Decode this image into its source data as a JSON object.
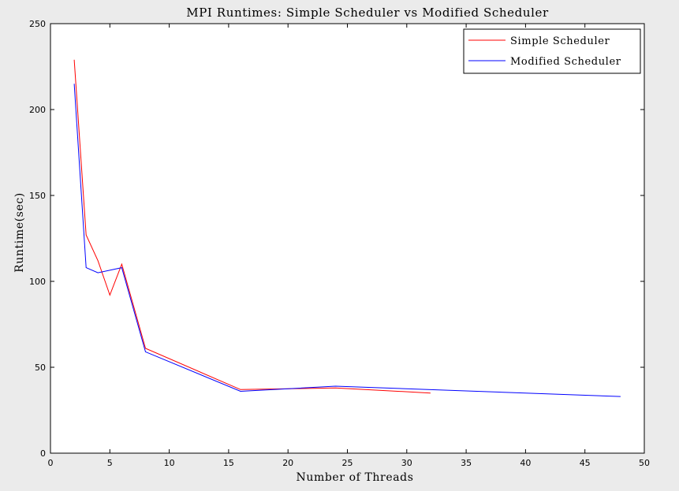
{
  "chart_data": {
    "type": "line",
    "title": "MPI Runtimes: Simple Scheduler vs Modified Scheduler",
    "xlabel": "Number of Threads",
    "ylabel": "Runtime(sec)",
    "xlim": [
      0,
      50
    ],
    "ylim": [
      0,
      250
    ],
    "xticks": [
      0,
      5,
      10,
      15,
      20,
      25,
      30,
      35,
      40,
      45,
      50
    ],
    "yticks": [
      0,
      50,
      100,
      150,
      200,
      250
    ],
    "grid": false,
    "legend_position": "top-right",
    "series": [
      {
        "name": "Simple Scheduler",
        "color": "#ff0000",
        "x": [
          2,
          3,
          4,
          5,
          6,
          8,
          16,
          24,
          32
        ],
        "y": [
          229,
          127,
          112,
          92,
          110,
          61,
          37,
          38,
          35
        ]
      },
      {
        "name": "Modified Scheduler",
        "color": "#0000ff",
        "x": [
          2,
          3,
          4,
          6,
          8,
          16,
          24,
          48
        ],
        "y": [
          215,
          108,
          105,
          108,
          59,
          36,
          39,
          33
        ]
      }
    ]
  }
}
